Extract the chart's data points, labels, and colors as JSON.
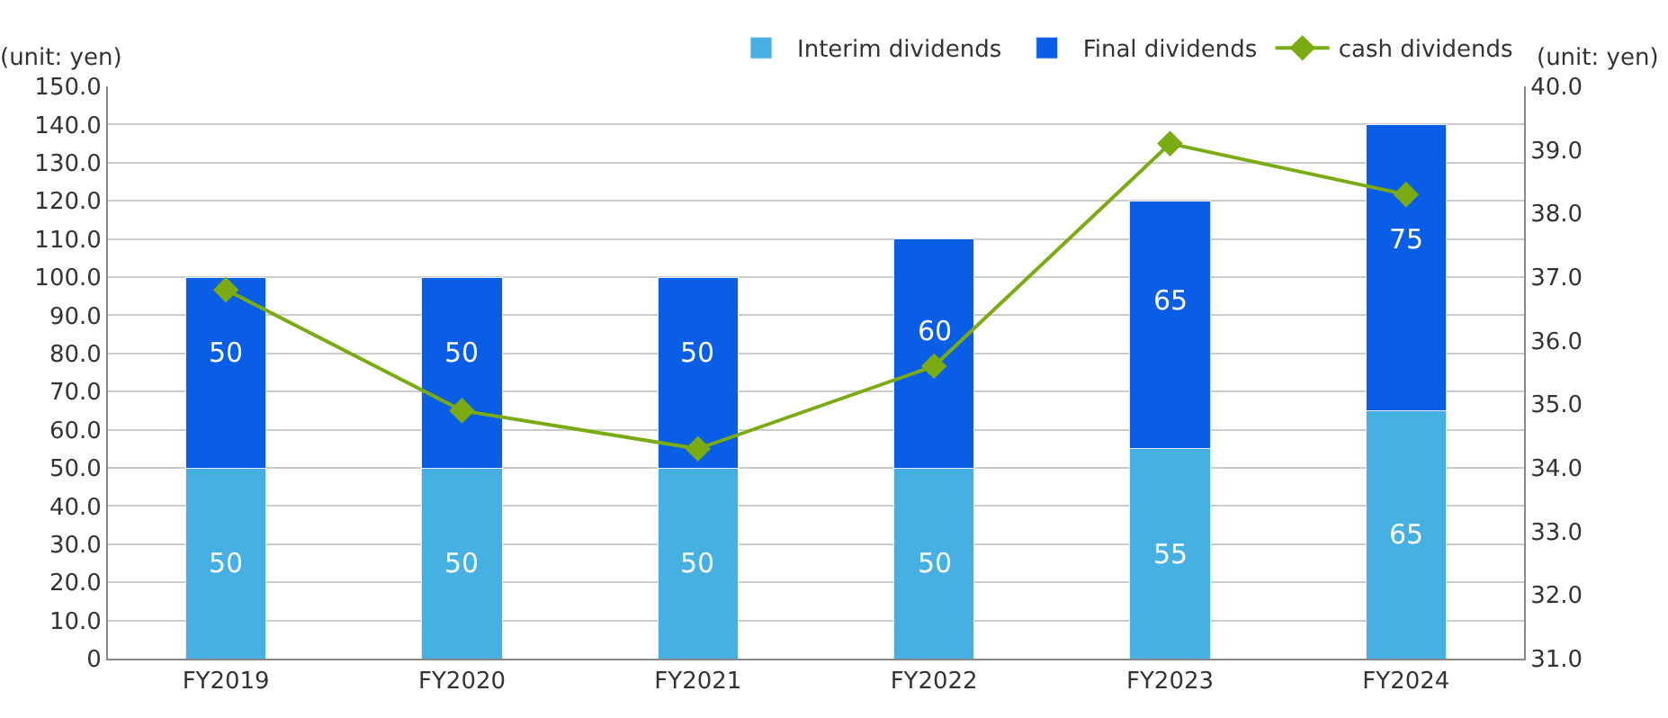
{
  "chart_data": {
    "type": "bar",
    "stacked": true,
    "categories": [
      "FY2019",
      "FY2020",
      "FY2021",
      "FY2022",
      "FY2023",
      "FY2024"
    ],
    "series": [
      {
        "name": "Interim dividends",
        "color": "#45b0e1",
        "values": [
          50,
          50,
          50,
          50,
          55,
          65
        ],
        "value_labels": [
          "50",
          "50",
          "50",
          "50",
          "55",
          "65"
        ]
      },
      {
        "name": "Final dividends",
        "color": "#0a5ee6",
        "values": [
          50,
          50,
          50,
          60,
          65,
          75
        ],
        "value_labels": [
          "50",
          "50",
          "50",
          "60",
          "65",
          "75"
        ]
      },
      {
        "name": "cash dividends",
        "type": "line",
        "axis": "y2",
        "color": "#7aab12",
        "marker": "diamond",
        "values": [
          36.8,
          34.9,
          34.3,
          35.6,
          39.1,
          38.3
        ]
      }
    ],
    "ylim": [
      0,
      150
    ],
    "yticks": [
      {
        "value": 0,
        "label": "0"
      },
      {
        "value": 10,
        "label": "10.0"
      },
      {
        "value": 20,
        "label": "20.0"
      },
      {
        "value": 30,
        "label": "30.0"
      },
      {
        "value": 40,
        "label": "40.0"
      },
      {
        "value": 50,
        "label": "50.0"
      },
      {
        "value": 60,
        "label": "60.0"
      },
      {
        "value": 70,
        "label": "70.0"
      },
      {
        "value": 80,
        "label": "80.0"
      },
      {
        "value": 90,
        "label": "90.0"
      },
      {
        "value": 100,
        "label": "100.0"
      },
      {
        "value": 110,
        "label": "110.0"
      },
      {
        "value": 120,
        "label": "120.0"
      },
      {
        "value": 130,
        "label": "130.0"
      },
      {
        "value": 140,
        "label": "140.0"
      },
      {
        "value": 150,
        "label": "150.0"
      }
    ],
    "y2lim": [
      31,
      40
    ],
    "y2ticks": [
      {
        "value": 31,
        "label": "31.0"
      },
      {
        "value": 32,
        "label": "32.0"
      },
      {
        "value": 33,
        "label": "33.0"
      },
      {
        "value": 34,
        "label": "34.0"
      },
      {
        "value": 35,
        "label": "35.0"
      },
      {
        "value": 36,
        "label": "36.0"
      },
      {
        "value": 37,
        "label": "37.0"
      },
      {
        "value": 38,
        "label": "38.0"
      },
      {
        "value": 39,
        "label": "39.0"
      },
      {
        "value": 40,
        "label": "40.0"
      }
    ],
    "ylabel": "(unit: yen)",
    "y2label": "(unit: yen)",
    "grid": "y",
    "legend": "top right"
  }
}
